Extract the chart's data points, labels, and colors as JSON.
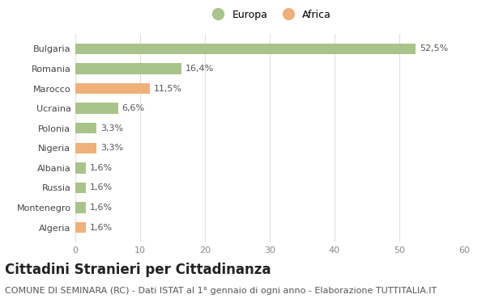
{
  "categories": [
    "Algeria",
    "Montenegro",
    "Russia",
    "Albania",
    "Nigeria",
    "Polonia",
    "Ucraina",
    "Marocco",
    "Romania",
    "Bulgaria"
  ],
  "values": [
    1.6,
    1.6,
    1.6,
    1.6,
    3.3,
    3.3,
    6.6,
    11.5,
    16.4,
    52.5
  ],
  "labels": [
    "1,6%",
    "1,6%",
    "1,6%",
    "1,6%",
    "3,3%",
    "3,3%",
    "6,6%",
    "11,5%",
    "16,4%",
    "52,5%"
  ],
  "colors": [
    "#f0b07a",
    "#a8c48a",
    "#a8c48a",
    "#a8c48a",
    "#f0b07a",
    "#a8c48a",
    "#a8c48a",
    "#f0b07a",
    "#a8c48a",
    "#a8c48a"
  ],
  "xlim": [
    0,
    60
  ],
  "xticks": [
    0,
    10,
    20,
    30,
    40,
    50,
    60
  ],
  "legend_europa_color": "#a8c48a",
  "legend_africa_color": "#f0b07a",
  "title": "Cittadini Stranieri per Cittadinanza",
  "subtitle": "COMUNE DI SEMINARA (RC) - Dati ISTAT al 1° gennaio di ogni anno - Elaborazione TUTTITALIA.IT",
  "background_color": "#ffffff",
  "bar_height": 0.55,
  "title_fontsize": 12,
  "subtitle_fontsize": 8,
  "label_fontsize": 8,
  "tick_fontsize": 8,
  "grid_color": "#e0e0e0"
}
